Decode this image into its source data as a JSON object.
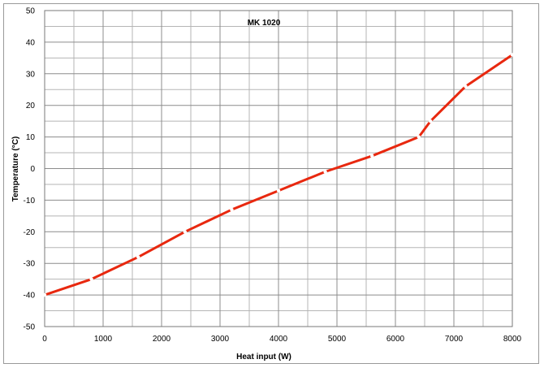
{
  "chart_data": {
    "type": "line",
    "title": "MK 1020",
    "xlabel": "Heat input (W)",
    "ylabel": "Temperature (°C)",
    "xlim": [
      0,
      8000
    ],
    "ylim": [
      -50,
      50
    ],
    "x_ticks": [
      0,
      1000,
      2000,
      3000,
      4000,
      5000,
      6000,
      7000,
      8000
    ],
    "y_ticks": [
      -50,
      -40,
      -30,
      -20,
      -10,
      0,
      10,
      20,
      30,
      40,
      50
    ],
    "grid": true,
    "legend": "none",
    "colors": {
      "line": "#e8280f",
      "marker": "#ffffff",
      "grid": "#b5b5b5"
    },
    "series": [
      {
        "x": [
          0,
          800,
          1600,
          2400,
          3200,
          4000,
          4800,
          5600,
          6400,
          6600,
          7200,
          8000
        ],
        "y": [
          -40,
          -35,
          -28,
          -20,
          -13,
          -7,
          -1,
          4,
          10,
          15,
          26,
          36
        ]
      }
    ]
  }
}
